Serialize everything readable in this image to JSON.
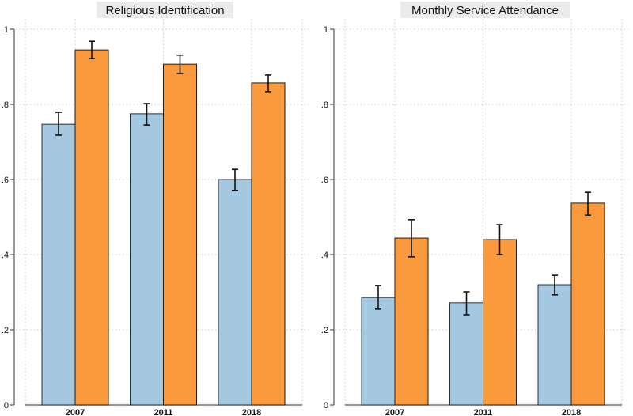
{
  "colors": {
    "series_a": "#a5c8e1",
    "series_a_edge": "#23303d",
    "series_b": "#fb9a3c",
    "series_b_edge": "#2a1a0a",
    "title_bg": "#ebebeb"
  },
  "chart_data": [
    {
      "type": "bar",
      "title": "Religious Identification",
      "categories": [
        "2007",
        "2011",
        "2018"
      ],
      "xlabel": "",
      "ylabel": "",
      "ylim": [
        0,
        1
      ],
      "yticks": [
        0,
        0.2,
        0.4,
        0.6,
        0.8,
        1
      ],
      "ytick_labels": [
        "0",
        ".2",
        ".4",
        ".6",
        ".8",
        "1"
      ],
      "grid": true,
      "series": [
        {
          "name": "Series A (blue)",
          "values": [
            0.747,
            0.775,
            0.6
          ],
          "ci_low": [
            0.718,
            0.745,
            0.571
          ],
          "ci_high": [
            0.779,
            0.802,
            0.627
          ]
        },
        {
          "name": "Series B (orange)",
          "values": [
            0.945,
            0.907,
            0.857
          ],
          "ci_low": [
            0.922,
            0.882,
            0.834
          ],
          "ci_high": [
            0.968,
            0.931,
            0.878
          ]
        }
      ]
    },
    {
      "type": "bar",
      "title": "Monthly Service Attendance",
      "categories": [
        "2007",
        "2011",
        "2018"
      ],
      "xlabel": "",
      "ylabel": "",
      "ylim": [
        0,
        1
      ],
      "yticks": [
        0,
        0.2,
        0.4,
        0.6,
        0.8,
        1
      ],
      "ytick_labels": [
        "0",
        ".2",
        ".4",
        ".6",
        ".8",
        "1"
      ],
      "grid": true,
      "series": [
        {
          "name": "Series A (blue)",
          "values": [
            0.286,
            0.272,
            0.32
          ],
          "ci_low": [
            0.255,
            0.24,
            0.293
          ],
          "ci_high": [
            0.318,
            0.301,
            0.345
          ]
        },
        {
          "name": "Series B (orange)",
          "values": [
            0.444,
            0.44,
            0.537
          ],
          "ci_low": [
            0.394,
            0.4,
            0.505
          ],
          "ci_high": [
            0.493,
            0.48,
            0.566
          ]
        }
      ]
    }
  ]
}
